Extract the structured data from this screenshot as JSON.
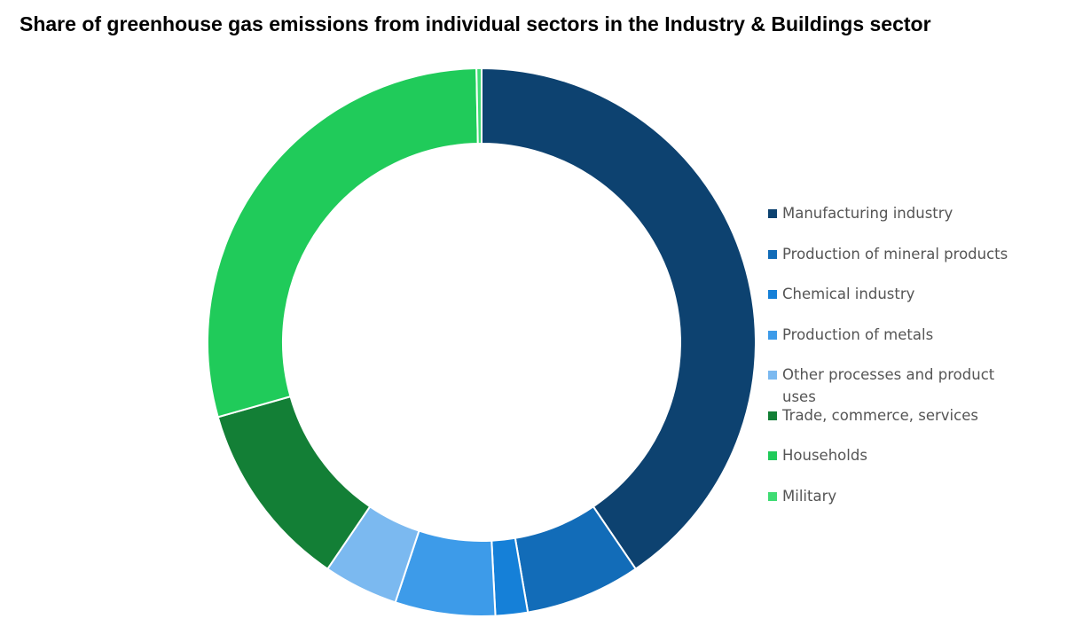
{
  "chart_data": {
    "type": "donut",
    "title": "Share of greenhouse gas emissions from individual sectors in the Industry & Buildings sector",
    "categories": [
      "Manufacturing industry",
      "Production of mineral products",
      "Chemical industry",
      "Production of metals",
      "Other processes and product uses",
      "Trade, commerce, services",
      "Households",
      "Military"
    ],
    "values": [
      40.5,
      6.8,
      1.9,
      5.9,
      4.4,
      11.1,
      29.1,
      0.3
    ],
    "colors": [
      "#0d4270",
      "#126cb8",
      "#1580d8",
      "#3d9be9",
      "#7bb9f0",
      "#137f36",
      "#20cb5a",
      "#3fdc73"
    ],
    "legend": "right"
  }
}
